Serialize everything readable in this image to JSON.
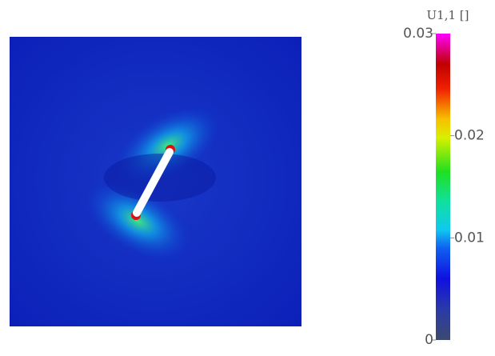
{
  "colorbar": {
    "title": "U1,1 []",
    "range": [
      0,
      0.03
    ],
    "ticks": [
      0,
      0.01,
      0.02,
      0.03
    ]
  }
}
